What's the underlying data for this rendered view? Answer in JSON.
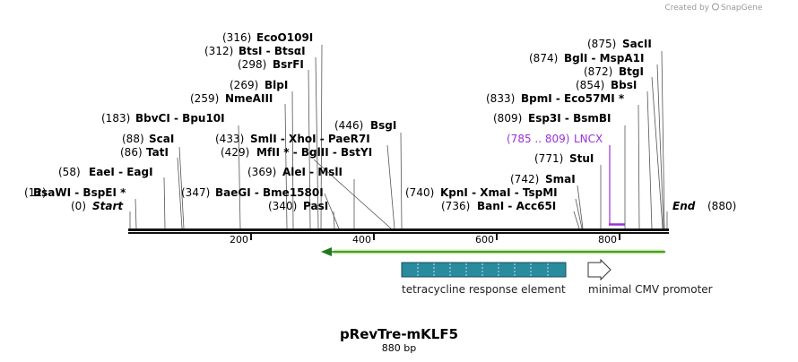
{
  "credit": {
    "prefix": "Created by",
    "brand": "SnapGene"
  },
  "map": {
    "name": "pRevTre-mKLF5",
    "size_label": "880 bp",
    "length": 880,
    "start_label": "Start",
    "end_label": "End",
    "start_pos": "(0)",
    "end_pos": "(880)",
    "ticks": [
      "200",
      "400",
      "600",
      "800"
    ]
  },
  "sites": [
    {
      "pos": "(12)",
      "bp": 12,
      "names": "BsaWI - BspEI *"
    },
    {
      "pos": "(58)",
      "bp": 58,
      "names": "EaeI - EagI"
    },
    {
      "pos": "(86)",
      "bp": 86,
      "names": "TatI"
    },
    {
      "pos": "(88)",
      "bp": 88,
      "names": "ScaI"
    },
    {
      "pos": "(183)",
      "bp": 183,
      "names": "BbvCI - Bpu10I"
    },
    {
      "pos": "(259)",
      "bp": 259,
      "names": "NmeAIII"
    },
    {
      "pos": "(269)",
      "bp": 269,
      "names": "BlpI"
    },
    {
      "pos": "(298)",
      "bp": 298,
      "names": "BsrFI"
    },
    {
      "pos": "(312)",
      "bp": 312,
      "names": "BtsI - BtsαI"
    },
    {
      "pos": "(316)",
      "bp": 316,
      "names": "EcoO109I"
    },
    {
      "pos": "(347)",
      "bp": 347,
      "names": "BaeGI - Bme1580I"
    },
    {
      "pos": "(340)",
      "bp": 340,
      "names": "PasI"
    },
    {
      "pos": "(369)",
      "bp": 369,
      "names": "AleI - MslI"
    },
    {
      "pos": "(429)",
      "bp": 429,
      "names": "MfII * - BglII - BstYI"
    },
    {
      "pos": "(433)",
      "bp": 433,
      "names": "SmlI - XhoI - PaeR7I"
    },
    {
      "pos": "(446)",
      "bp": 446,
      "names": "BsgI"
    },
    {
      "pos": "(736)",
      "bp": 736,
      "names": "BanI - Acc65I"
    },
    {
      "pos": "(740)",
      "bp": 740,
      "names": "KpnI - XmaI - TspMI"
    },
    {
      "pos": "(742)",
      "bp": 742,
      "names": "SmaI"
    },
    {
      "pos": "(771)",
      "bp": 771,
      "names": "StuI"
    },
    {
      "pos": "(809)",
      "bp": 809,
      "names": "Esp3I - BsmBI"
    },
    {
      "pos": "(833)",
      "bp": 833,
      "names": "BpmI - Eco57MI *"
    },
    {
      "pos": "(854)",
      "bp": 854,
      "names": "BbsI"
    },
    {
      "pos": "(872)",
      "bp": 872,
      "names": "BtgI"
    },
    {
      "pos": "(874)",
      "bp": 874,
      "names": "BglI - MspA1I"
    },
    {
      "pos": "(875)",
      "bp": 875,
      "names": "SacII"
    }
  ],
  "primer": {
    "range": "(785 .. 809)",
    "name": "LNCX",
    "color": "#9b30d9"
  },
  "features": [
    {
      "name": "tetracycline response element",
      "color": "#2a8a9e"
    },
    {
      "name": "minimal CMV promoter",
      "color": "#ffffff"
    }
  ],
  "orf_arrow_color": "#1e7a1e"
}
